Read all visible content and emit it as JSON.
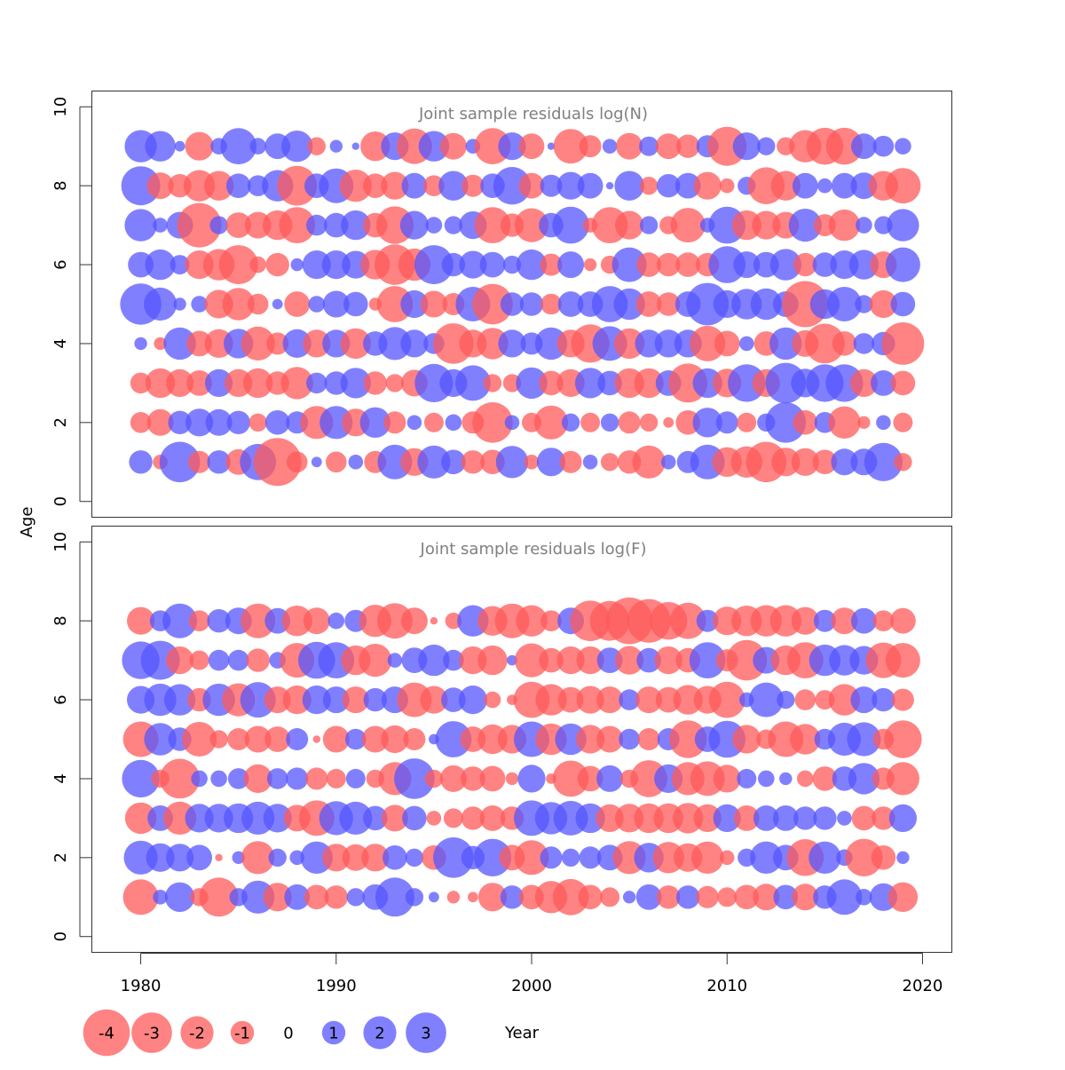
{
  "chart_data": {
    "type": "bubble",
    "xlabel": "Year",
    "ylabel": "Age",
    "xlim": [
      1977.5,
      2021.5
    ],
    "ylim": [
      -0.4,
      10.4
    ],
    "x_ticks": [
      1980,
      1990,
      2000,
      2010,
      2020
    ],
    "y_ticks": [
      0,
      2,
      4,
      6,
      8,
      10
    ],
    "years": [
      1980,
      1981,
      1982,
      1983,
      1984,
      1985,
      1986,
      1987,
      1988,
      1989,
      1990,
      1991,
      1992,
      1993,
      1994,
      1995,
      1996,
      1997,
      1998,
      1999,
      2000,
      2001,
      2002,
      2003,
      2004,
      2005,
      2006,
      2007,
      2008,
      2009,
      2010,
      2011,
      2012,
      2013,
      2014,
      2015,
      2016,
      2017,
      2018,
      2019
    ],
    "colors": {
      "positive": "#5555ff",
      "negative": "#ff5a5a",
      "opacity": 0.75
    },
    "legend": {
      "values": [
        -4,
        -3,
        -2,
        -1,
        0,
        1,
        2,
        3
      ],
      "labels": [
        "-4",
        "-3",
        "-2",
        "-1",
        "0",
        "1",
        "2",
        "3"
      ]
    },
    "panels": [
      {
        "title": "Joint sample residuals log(N)",
        "ages": [
          1,
          2,
          3,
          4,
          5,
          6,
          7,
          8,
          9
        ],
        "residuals": [
          [
            1.0,
            -0.4,
            3.0,
            -0.9,
            1.0,
            -1.2,
            2.4,
            -4.2,
            -0.8,
            0.2,
            -0.8,
            0.4,
            -0.9,
            2.2,
            -1.4,
            2.0,
            1.1,
            -1.0,
            -1.1,
            1.9,
            -0.4,
            1.5,
            -0.9,
            0.4,
            -0.6,
            -1.0,
            -2.0,
            0.4,
            0.9,
            2.2,
            -1.6,
            -1.8,
            -3.0,
            -1.5,
            -1.4,
            -1.1,
            1.3,
            1.3,
            2.7,
            -0.6
          ],
          [
            -0.8,
            -1.3,
            1.0,
            1.4,
            1.3,
            1.0,
            -0.6,
            1.1,
            0.9,
            -2.0,
            2.0,
            -1.4,
            1.7,
            -0.9,
            0.4,
            -0.7,
            0.5,
            -0.9,
            -3.0,
            0.4,
            -0.7,
            -2.1,
            0.6,
            -0.7,
            0.6,
            -0.9,
            -0.6,
            -0.2,
            -1.1,
            1.6,
            0.9,
            -0.7,
            0.6,
            3.0,
            -1.1,
            0.8,
            -1.9,
            -0.3,
            0.4,
            -0.7
          ],
          [
            -0.8,
            -1.6,
            -1.4,
            -1.2,
            1.4,
            -1.4,
            -1.6,
            -1.0,
            -1.9,
            0.8,
            1.0,
            1.7,
            -1.0,
            -0.6,
            -1.3,
            2.7,
            1.4,
            2.3,
            -0.6,
            -0.6,
            1.8,
            -1.1,
            -1.4,
            1.7,
            1.1,
            -1.6,
            -1.6,
            1.2,
            -2.8,
            1.6,
            -1.5,
            2.6,
            -1.4,
            3.0,
            1.5,
            2.6,
            2.6,
            -1.4,
            1.2,
            -1.1
          ],
          [
            0.3,
            -0.3,
            1.9,
            -1.2,
            -1.5,
            1.6,
            -2.1,
            -0.9,
            1.5,
            -1.4,
            1.4,
            -1.7,
            1.1,
            2.0,
            1.4,
            0.8,
            -3.0,
            -1.4,
            -1.8,
            1.4,
            0.9,
            1.9,
            -1.4,
            -2.7,
            2.2,
            -1.7,
            1.4,
            1.4,
            1.4,
            -2.3,
            -1.2,
            0.4,
            -1.1,
            1.9,
            -1.3,
            -2.9,
            -1.1,
            0.8,
            1.0,
            -3.3
          ],
          [
            3.1,
            2.0,
            0.3,
            0.5,
            -1.5,
            -1.9,
            -0.8,
            0.2,
            -1.2,
            0.5,
            1.3,
            1.1,
            -0.3,
            -2.4,
            1.4,
            -1.3,
            -0.9,
            2.2,
            -3.0,
            1.0,
            1.0,
            -0.8,
            1.2,
            1.2,
            2.4,
            1.8,
            -1.2,
            -1.0,
            1.2,
            3.3,
            1.4,
            1.7,
            1.8,
            1.2,
            -3.9,
            1.6,
            2.2,
            0.6,
            -1.4,
            1.1
          ],
          [
            1.2,
            1.7,
            0.7,
            -1.5,
            -1.8,
            -2.8,
            -0.5,
            -1.0,
            0.3,
            1.5,
            1.5,
            1.4,
            -1.6,
            -3.0,
            -1.9,
            2.8,
            1.0,
            1.4,
            1.2,
            0.6,
            1.7,
            -0.9,
            1.3,
            -0.3,
            -0.6,
            2.2,
            -1.1,
            -1.0,
            -1.1,
            -1.0,
            2.5,
            1.3,
            1.2,
            1.8,
            -1.0,
            1.1,
            1.5,
            1.6,
            -1.3,
            2.2
          ],
          [
            1.9,
            0.4,
            1.3,
            -3.6,
            0.6,
            -1.2,
            -1.3,
            -1.6,
            -2.4,
            0.8,
            1.1,
            1.6,
            -1.1,
            -2.6,
            1.5,
            0.5,
            0.6,
            1.4,
            -2.4,
            -1.0,
            -2.1,
            1.1,
            2.5,
            -0.4,
            -2.4,
            -1.5,
            0.6,
            -0.6,
            -2.2,
            0.4,
            2.5,
            -1.6,
            -1.5,
            -1.3,
            2.0,
            -0.9,
            -1.8,
            0.5,
            0.6,
            1.9
          ],
          [
            2.8,
            -1.3,
            -1.0,
            -1.8,
            -1.6,
            1.1,
            0.8,
            1.8,
            -2.9,
            1.1,
            2.2,
            -1.9,
            -1.1,
            -1.4,
            1.2,
            -0.8,
            1.6,
            -0.9,
            1.1,
            2.6,
            -1.2,
            0.9,
            1.4,
            1.2,
            0.1,
            1.6,
            -0.6,
            1.0,
            1.2,
            -1.4,
            -0.4,
            0.6,
            -2.5,
            -1.6,
            1.2,
            0.4,
            1.2,
            1.3,
            -1.6,
            -2.3
          ],
          [
            1.9,
            1.7,
            0.2,
            -1.5,
            0.5,
            2.4,
            0.5,
            1.2,
            1.8,
            -0.6,
            0.3,
            0.1,
            -1.6,
            1.4,
            -2.3,
            1.7,
            -1.3,
            0.4,
            -2.4,
            1.4,
            -1.2,
            0.1,
            -2.2,
            -0.9,
            0.4,
            -1.3,
            0.7,
            -1.2,
            -1.0,
            0.9,
            -2.8,
            1.4,
            0.6,
            -0.6,
            -1.9,
            -2.5,
            -2.5,
            1.2,
            0.8,
            0.5
          ]
        ]
      },
      {
        "title": "Joint sample residuals log(F)",
        "ages": [
          1,
          2,
          3,
          4,
          5,
          6,
          7,
          8
        ],
        "residuals": [
          [
            -2.3,
            0.4,
            1.6,
            -0.6,
            -2.8,
            0.6,
            2.0,
            -1.5,
            1.2,
            -1.1,
            -1.0,
            0.6,
            1.2,
            2.8,
            0.6,
            0.2,
            -0.3,
            -0.2,
            -1.5,
            1.0,
            -1.1,
            -1.9,
            -2.4,
            -1.1,
            -0.7,
            0.3,
            1.2,
            -1.0,
            1.0,
            -0.9,
            -0.7,
            -1.1,
            -1.3,
            1.1,
            -1.3,
            1.0,
            2.3,
            0.5,
            1.4,
            -1.6
          ],
          [
            2.1,
            1.5,
            1.4,
            1.2,
            -0.1,
            0.3,
            -2.0,
            0.6,
            0.4,
            1.9,
            -1.4,
            -1.3,
            -1.4,
            1.1,
            0.6,
            -1.1,
            3.0,
            1.0,
            2.6,
            -1.2,
            -2.2,
            0.9,
            0.6,
            0.9,
            1.2,
            -2.0,
            1.6,
            -1.8,
            -1.5,
            -1.9,
            -0.4,
            0.6,
            1.9,
            1.2,
            -2.5,
            1.9,
            0.5,
            -2.6,
            -1.1,
            0.3
          ],
          [
            -1.8,
            1.2,
            -2.0,
            1.5,
            1.5,
            1.6,
            2.0,
            1.5,
            -1.3,
            -2.3,
            2.1,
            2.0,
            1.1,
            -1.3,
            1.1,
            -0.4,
            -0.7,
            -1.0,
            -1.2,
            -1.0,
            2.3,
            1.9,
            2.2,
            1.6,
            -1.4,
            -1.5,
            -1.6,
            -1.6,
            -1.7,
            -1.4,
            1.4,
            -1.2,
            1.2,
            1.2,
            1.0,
            1.0,
            0.4,
            -1.1,
            -1.0,
            1.4
          ],
          [
            2.6,
            -0.6,
            -2.9,
            0.5,
            0.5,
            0.8,
            -1.5,
            0.8,
            0.9,
            -0.9,
            -0.7,
            0.7,
            -0.6,
            -2.0,
            3.0,
            -0.6,
            -1.3,
            -1.1,
            -1.2,
            -0.3,
            1.4,
            -0.2,
            -2.4,
            -1.2,
            1.3,
            -0.6,
            -2.5,
            1.5,
            -2.0,
            -2.2,
            -1.4,
            0.7,
            0.5,
            0.3,
            -0.5,
            -1.1,
            1.1,
            1.8,
            -0.9,
            -2.0
          ],
          [
            -2.3,
            1.9,
            1.0,
            -2.2,
            -0.6,
            -0.9,
            -1.3,
            -1.2,
            0.9,
            -0.1,
            -1.3,
            0.8,
            -1.3,
            -1.4,
            -0.9,
            0.2,
            2.4,
            -1.2,
            -1.6,
            -1.5,
            2.3,
            -1.8,
            1.8,
            -1.5,
            -1.3,
            0.8,
            -0.9,
            0.9,
            -2.6,
            1.2,
            2.5,
            -1.5,
            -0.7,
            -2.3,
            -1.7,
            0.8,
            2.0,
            2.1,
            -0.8,
            -2.6
          ],
          [
            1.4,
            1.9,
            1.8,
            -1.0,
            1.9,
            -2.0,
            2.3,
            -1.3,
            -1.5,
            1.5,
            1.3,
            -1.3,
            1.0,
            1.3,
            -2.2,
            -1.4,
            1.1,
            1.5,
            -0.5,
            -0.2,
            -2.4,
            -1.8,
            -1.2,
            -1.4,
            -1.3,
            0.8,
            -1.3,
            -1.2,
            -1.6,
            -1.4,
            -2.4,
            0.4,
            2.2,
            0.6,
            -0.8,
            -0.7,
            -1.8,
            1.3,
            1.0,
            -0.9
          ],
          [
            2.6,
            2.8,
            -1.4,
            -0.7,
            0.8,
            0.8,
            -1.0,
            0.5,
            -2.2,
            2.5,
            2.4,
            -1.6,
            -2.0,
            0.4,
            1.2,
            1.8,
            0.8,
            -1.4,
            -1.6,
            0.2,
            -2.1,
            -1.1,
            -1.4,
            -1.4,
            1.2,
            -1.5,
            1.1,
            -1.4,
            -1.1,
            2.4,
            -0.9,
            -3.0,
            1.3,
            -1.6,
            -2.4,
            1.8,
            1.7,
            1.5,
            -2.3,
            -2.2
          ],
          [
            -1.4,
            0.8,
            2.2,
            -0.8,
            1.0,
            1.3,
            -2.2,
            1.2,
            -1.7,
            -1.3,
            0.5,
            0.9,
            -1.9,
            -2.3,
            -1.3,
            -0.1,
            -0.5,
            1.8,
            -1.6,
            -2.2,
            -1.8,
            -0.8,
            1.3,
            -3.0,
            -2.9,
            -4.0,
            -3.5,
            -2.6,
            -2.4,
            0.9,
            -1.5,
            -1.7,
            -1.8,
            -1.8,
            -1.4,
            0.9,
            -1.3,
            1.2,
            -0.8,
            -1.2
          ]
        ]
      }
    ]
  }
}
